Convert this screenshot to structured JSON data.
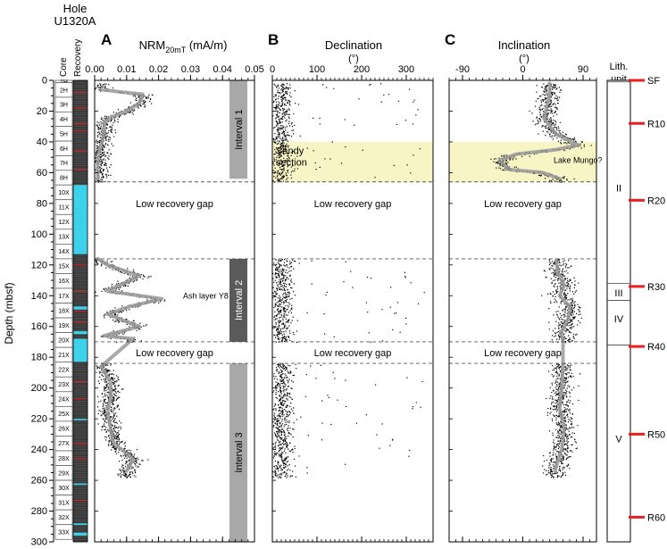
{
  "hole": {
    "line1": "Hole",
    "line2": "U1320A"
  },
  "column_labels": {
    "core": "Core",
    "recovery": "Recovery",
    "lith_line1": "Lith.",
    "lith_line2": "unit"
  },
  "chart_data": {
    "type": "scatter",
    "ylabel": "Depth (mbsf)",
    "ylim": [
      0,
      300
    ],
    "y_ticks": [
      0,
      20,
      40,
      60,
      80,
      100,
      120,
      140,
      160,
      180,
      200,
      220,
      240,
      260,
      280,
      300
    ],
    "cores": [
      {
        "label": "1H",
        "top": 0,
        "bottom": 1.5
      },
      {
        "label": "2H",
        "top": 1.5,
        "bottom": 11
      },
      {
        "label": "3H",
        "top": 11,
        "bottom": 20.5
      },
      {
        "label": "4H",
        "top": 20.5,
        "bottom": 30
      },
      {
        "label": "5H",
        "top": 30,
        "bottom": 39.5
      },
      {
        "label": "6H",
        "top": 39.5,
        "bottom": 49
      },
      {
        "label": "7H",
        "top": 49,
        "bottom": 58.5
      },
      {
        "label": "8H",
        "top": 58.5,
        "bottom": 68
      },
      {
        "label": "10X",
        "top": 68,
        "bottom": 77.6
      },
      {
        "label": "11X",
        "top": 77.6,
        "bottom": 87.2
      },
      {
        "label": "12X",
        "top": 87.2,
        "bottom": 96.8
      },
      {
        "label": "13X",
        "top": 96.8,
        "bottom": 106.4
      },
      {
        "label": "14X",
        "top": 106.4,
        "bottom": 116
      },
      {
        "label": "15X",
        "top": 116,
        "bottom": 125.6
      },
      {
        "label": "16X",
        "top": 125.6,
        "bottom": 135.2
      },
      {
        "label": "17X",
        "top": 135.2,
        "bottom": 144.8
      },
      {
        "label": "18X",
        "top": 144.8,
        "bottom": 154.4
      },
      {
        "label": "19X",
        "top": 154.4,
        "bottom": 164
      },
      {
        "label": "20X",
        "top": 164,
        "bottom": 173.6
      },
      {
        "label": "21X",
        "top": 173.6,
        "bottom": 183.2
      },
      {
        "label": "22X",
        "top": 183.2,
        "bottom": 192.8
      },
      {
        "label": "23X",
        "top": 192.8,
        "bottom": 202.4
      },
      {
        "label": "24X",
        "top": 202.4,
        "bottom": 212
      },
      {
        "label": "25X",
        "top": 212,
        "bottom": 221.6
      },
      {
        "label": "26X",
        "top": 221.6,
        "bottom": 231.2
      },
      {
        "label": "27X",
        "top": 231.2,
        "bottom": 240.8
      },
      {
        "label": "28X",
        "top": 240.8,
        "bottom": 250.4
      },
      {
        "label": "29X",
        "top": 250.4,
        "bottom": 260
      },
      {
        "label": "30X",
        "top": 260,
        "bottom": 269.6
      },
      {
        "label": "31X",
        "top": 269.6,
        "bottom": 279.2
      },
      {
        "label": "32X",
        "top": 279.2,
        "bottom": 288.8
      },
      {
        "label": "33X",
        "top": 288.8,
        "bottom": 298.4
      }
    ],
    "recovery": {
      "good_color": "#3a3a3a",
      "poor_color": "#37d6f0",
      "mark_color": "#e02020",
      "poor_intervals": [
        [
          68,
          113
        ],
        [
          147,
          149
        ],
        [
          163,
          165
        ],
        [
          168,
          183
        ],
        [
          220,
          221
        ],
        [
          262,
          263
        ],
        [
          288,
          289
        ],
        [
          294,
          296
        ]
      ],
      "red_marks": [
        8,
        18,
        28,
        33,
        46,
        58,
        120,
        137,
        150,
        157,
        196,
        207,
        236,
        246,
        273
      ]
    },
    "panels": [
      {
        "letter": "A",
        "title_main": "NRM",
        "title_sub": "20mT",
        "title_unit": " (mA/m)",
        "xlim": [
          0,
          0.05
        ],
        "x_ticks": [
          0,
          0.01,
          0.02,
          0.03,
          0.04,
          0.05
        ],
        "x_tick_labels": [
          "0.00",
          "0.01",
          "0.02",
          "0.03",
          "0.04",
          "0.05"
        ],
        "mean_curve": [
          [
            0.002,
            6
          ],
          [
            0.01,
            8
          ],
          [
            0.015,
            9
          ],
          [
            0.014,
            15
          ],
          [
            0.01,
            20
          ],
          [
            0.005,
            24
          ],
          [
            0.003,
            28
          ],
          [
            0.003,
            35
          ],
          [
            0.002,
            42
          ],
          [
            0.001,
            50
          ],
          [
            0.001,
            64
          ],
          [
            0.001,
            116
          ],
          [
            0.004,
            120
          ],
          [
            0.014,
            127
          ],
          [
            0.004,
            137
          ],
          [
            0.021,
            142
          ],
          [
            0.011,
            147
          ],
          [
            0.004,
            152
          ],
          [
            0.014,
            160
          ],
          [
            0.003,
            166
          ],
          [
            0.012,
            168
          ],
          [
            0.002,
            186
          ],
          [
            0.005,
            196
          ],
          [
            0.005,
            206
          ],
          [
            0.004,
            216
          ],
          [
            0.005,
            226
          ],
          [
            0.006,
            236
          ],
          [
            0.012,
            246
          ],
          [
            0.01,
            254
          ]
        ],
        "scatter_segments": [
          [
            2,
            66
          ],
          [
            116,
            170
          ],
          [
            184,
            258
          ]
        ],
        "scatter_spread": 0.003
      },
      {
        "letter": "B",
        "title_main": "Declination",
        "title_unit": "(°)",
        "xlim": [
          0,
          360
        ],
        "x_ticks": [
          0,
          100,
          200,
          300
        ],
        "x_tick_labels": [
          "0",
          "100",
          "200",
          "300"
        ],
        "scatter_segments": [
          [
            2,
            66
          ],
          [
            116,
            170
          ],
          [
            184,
            258
          ]
        ],
        "scatter_center": 20,
        "scatter_spread": 25
      },
      {
        "letter": "C",
        "title_main": "Inclination",
        "title_unit": "(°)",
        "xlim": [
          -110,
          110
        ],
        "x_ticks": [
          -90,
          0,
          90
        ],
        "x_tick_labels": [
          "-90",
          "0",
          "90"
        ],
        "mean_curve": [
          [
            40,
            2
          ],
          [
            40,
            10
          ],
          [
            35,
            18
          ],
          [
            32,
            25
          ],
          [
            50,
            35
          ],
          [
            82,
            42
          ],
          [
            50,
            45
          ],
          [
            -10,
            48
          ],
          [
            -35,
            52
          ],
          [
            -20,
            58
          ],
          [
            30,
            60
          ],
          [
            55,
            64
          ],
          [
            50,
            117
          ],
          [
            52,
            125
          ],
          [
            62,
            133
          ],
          [
            55,
            140
          ],
          [
            70,
            147
          ],
          [
            68,
            155
          ],
          [
            58,
            163
          ],
          [
            60,
            170
          ],
          [
            60,
            186
          ],
          [
            58,
            200
          ],
          [
            55,
            213
          ],
          [
            62,
            226
          ],
          [
            58,
            240
          ],
          [
            48,
            254
          ]
        ],
        "scatter_segments": [
          [
            2,
            66
          ],
          [
            116,
            170
          ],
          [
            184,
            258
          ]
        ],
        "scatter_spread": 18
      }
    ],
    "dashed_depths": [
      66,
      116,
      170,
      184
    ],
    "gap_label": "Low recovery gap",
    "gap_label_depths": [
      80,
      177
    ],
    "intervals": [
      {
        "label": "Interval 1",
        "top": 0,
        "bottom": 64,
        "color": "#a8a8a8"
      },
      {
        "label": "Interval 2",
        "top": 116,
        "bottom": 170,
        "color": "#5a5a5a"
      },
      {
        "label": "Interval 3",
        "top": 184,
        "bottom": 300,
        "color": "#a8a8a8"
      }
    ],
    "sandy_band": {
      "top": 40,
      "bottom": 66,
      "color": "#f7f5c6"
    },
    "annotations": {
      "ash": {
        "text": "Ash layer Y8",
        "depth": 140
      },
      "sandy_line1": "Sandy",
      "sandy_line2": "section",
      "sandy_depth": 49,
      "mungo": {
        "text": "Lake Mungo?",
        "depth": 52
      }
    },
    "lith_units": {
      "boundaries": [
        1,
        132,
        143,
        172
      ],
      "labels": [
        {
          "label": "II",
          "depth": 70
        },
        {
          "label": "III",
          "depth": 138
        },
        {
          "label": "IV",
          "depth": 155
        },
        {
          "label": "V",
          "depth": 233
        }
      ]
    },
    "depth_markers": [
      {
        "label": "SF",
        "depth": 0
      },
      {
        "label": "R10",
        "depth": 28
      },
      {
        "label": "R20",
        "depth": 78
      },
      {
        "label": "R30",
        "depth": 134
      },
      {
        "label": "R40",
        "depth": 173
      },
      {
        "label": "R50",
        "depth": 230
      },
      {
        "label": "R60",
        "depth": 284
      }
    ],
    "marker_color": "#e82020"
  }
}
